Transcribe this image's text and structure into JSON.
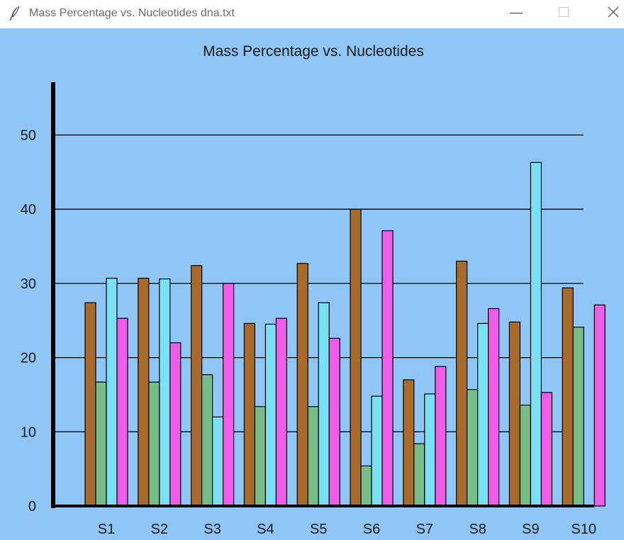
{
  "window": {
    "title": "Mass Percentage vs. Nucleotides dna.txt",
    "icon": "feather-icon",
    "controls": [
      "minimize-icon",
      "maximize-icon",
      "close-icon"
    ]
  },
  "colors": {
    "background": "#8fc6f5",
    "series": [
      "#a86b2c",
      "#78bd88",
      "#7ae1f4",
      "#ee5ce8"
    ]
  },
  "chart_data": {
    "type": "bar",
    "title": "Mass Percentage vs. Nucleotides",
    "xlabel": "",
    "ylabel": "",
    "categories": [
      "S1",
      "S2",
      "S3",
      "S4",
      "S5",
      "S6",
      "S7",
      "S8",
      "S9",
      "S10"
    ],
    "ylim": [
      0,
      57
    ],
    "yticks": [
      0,
      10,
      20,
      30,
      40,
      50
    ],
    "grid": true,
    "legend": "none",
    "series": [
      {
        "values": [
          27.4,
          30.7,
          32.4,
          24.6,
          32.7,
          40.0,
          17.0,
          33.0,
          24.8,
          29.4
        ]
      },
      {
        "values": [
          16.7,
          16.7,
          17.7,
          13.4,
          13.4,
          5.4,
          8.4,
          15.7,
          13.6,
          24.1
        ]
      },
      {
        "values": [
          30.7,
          30.6,
          12.0,
          24.5,
          27.4,
          14.8,
          15.1,
          24.6,
          46.3,
          0.0
        ]
      },
      {
        "values": [
          25.3,
          22.0,
          30.0,
          25.3,
          22.6,
          37.1,
          18.8,
          26.6,
          15.3,
          27.1
        ]
      }
    ]
  }
}
